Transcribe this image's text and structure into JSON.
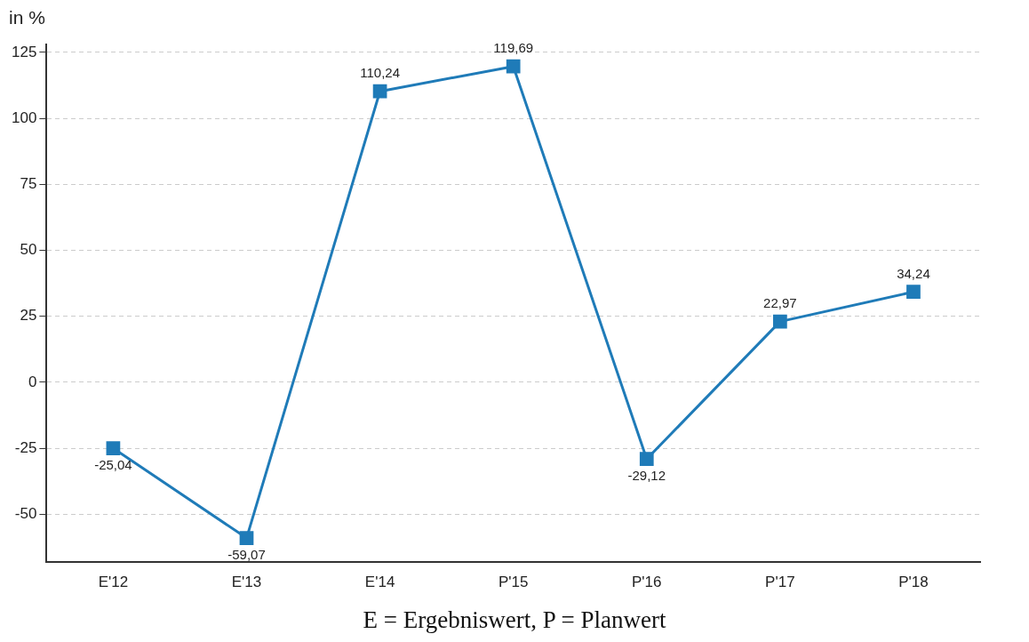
{
  "chart_data": {
    "type": "line",
    "ylabel": "in %",
    "categories": [
      "E'12",
      "E'13",
      "E'14",
      "P'15",
      "P'16",
      "P'17",
      "P'18"
    ],
    "series": [
      {
        "color": "#1f7bb8",
        "values": [
          -25.04,
          -59.07,
          110.24,
          119.69,
          -29.12,
          22.97,
          34.24
        ],
        "value_labels": [
          "-25,04",
          "-59,07",
          "110,24",
          "119,69",
          "-29,12",
          "22,97",
          "34,24"
        ]
      }
    ],
    "ylim": [
      -68,
      128
    ],
    "yticks": [
      -50,
      -25,
      0,
      25,
      50,
      75,
      100,
      125
    ],
    "grid": "y",
    "legend": false,
    "marker": "square",
    "line_style": "solid",
    "annotations": [
      "E = Ergebniswert, P = Planwert"
    ]
  }
}
